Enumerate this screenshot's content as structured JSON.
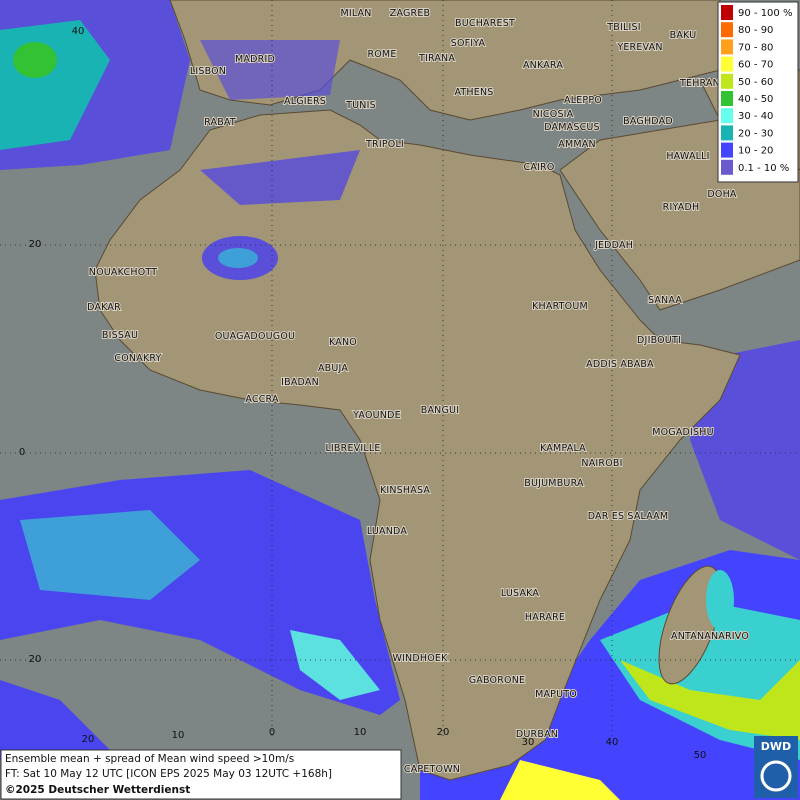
{
  "map": {
    "cities": [
      "MILAN",
      "ZAGREB",
      "BUCHAREST",
      "SOFIYA",
      "TBILISI",
      "BAKU",
      "YEREVAN",
      "MADRID",
      "ROME",
      "TIRANA",
      "ANKARA",
      "LISBON",
      "TEHRAN",
      "ATHENS",
      "ALGIERS",
      "TUNIS",
      "ALEPPO",
      "RABAT",
      "NICOSIA",
      "BAGHDAD",
      "DAMASCUS",
      "AMMAN",
      "TRIPOLI",
      "HAWALLI",
      "CAIRO",
      "DOHA",
      "RIYADH",
      "JEDDAH",
      "NOUAKCHOTT",
      "SANAA",
      "DAKAR",
      "KHARTOUM",
      "BISSAU",
      "DJIBOUTI",
      "OUAGADOUGOU",
      "KANO",
      "CONAKRY",
      "ADDIS ABABA",
      "ABUJA",
      "IBADAN",
      "ACCRA",
      "YAOUNDE",
      "BANGUI",
      "MOGADISHU",
      "LIBREVILLE",
      "KAMPALA",
      "NAIROBI",
      "KINSHASA",
      "BUJUMBURA",
      "DAR ES SALAAM",
      "LUANDA",
      "LUSAKA",
      "HARARE",
      "ANTANANARIVO",
      "WINDHOEK",
      "GABORONE",
      "MAPUTO",
      "DURBAN",
      "CAPETOWN"
    ],
    "lat_labels": [
      "40",
      "20",
      "0",
      "20"
    ],
    "lon_labels": [
      "20",
      "10",
      "0",
      "10",
      "20",
      "30",
      "40",
      "50"
    ],
    "legend": [
      {
        "label": "90 - 100 %",
        "color": "#c00000"
      },
      {
        "label": "80 - 90",
        "color": "#ff6a00"
      },
      {
        "label": "70 - 80",
        "color": "#ff9f1a"
      },
      {
        "label": "60 - 70",
        "color": "#ffff33"
      },
      {
        "label": "50 - 60",
        "color": "#bfe61a"
      },
      {
        "label": "40 - 50",
        "color": "#33c233"
      },
      {
        "label": "30 - 40",
        "color": "#66ffee"
      },
      {
        "label": "20 - 30",
        "color": "#1ab3b3"
      },
      {
        "label": "10 - 20",
        "color": "#4444ff"
      },
      {
        "label": "0.1 - 10 %",
        "color": "#6a5acd"
      }
    ],
    "caption": [
      "Ensemble mean + spread of Mean wind speed >10m/s",
      "FT: Sat 10 May 12 UTC [ICON EPS 2025 May 03 12UTC +168h]",
      "©2025 Deutscher Wetterdienst"
    ],
    "logo": "DWD"
  }
}
